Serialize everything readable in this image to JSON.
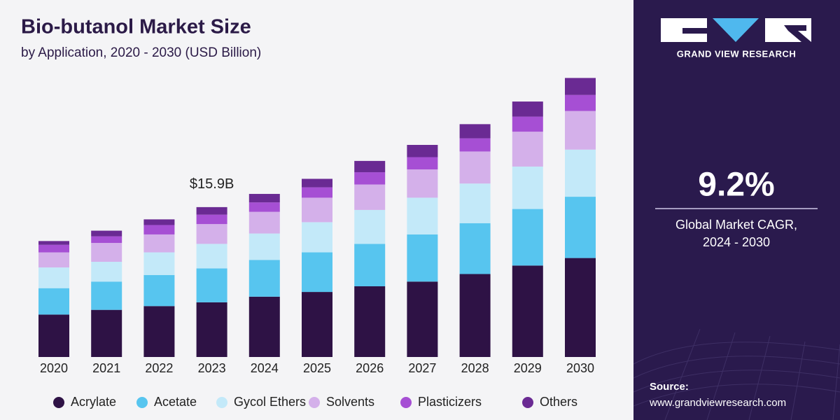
{
  "chart_data": {
    "type": "stacked_bar",
    "title": "Bio-butanol Market Size",
    "subtitle": "by Application, 2020 - 2030 (USD Billion)",
    "categories": [
      "2020",
      "2021",
      "2022",
      "2023",
      "2024",
      "2025",
      "2026",
      "2027",
      "2028",
      "2029",
      "2030"
    ],
    "series": [
      {
        "name": "Acrylate",
        "color": "#2e1245",
        "values": [
          4.5,
          5.0,
          5.4,
          5.8,
          6.4,
          6.9,
          7.5,
          8.0,
          8.8,
          9.7,
          10.5
        ]
      },
      {
        "name": "Acetate",
        "color": "#57c5ef",
        "values": [
          2.8,
          3.0,
          3.3,
          3.6,
          3.9,
          4.2,
          4.5,
          5.0,
          5.4,
          6.0,
          6.5
        ]
      },
      {
        "name": "Gycol Ethers",
        "color": "#c3e9f9",
        "values": [
          2.2,
          2.1,
          2.4,
          2.6,
          2.8,
          3.2,
          3.6,
          3.9,
          4.2,
          4.5,
          5.0
        ]
      },
      {
        "name": "Solvents",
        "color": "#d4b0ea",
        "values": [
          1.6,
          2.0,
          1.9,
          2.1,
          2.3,
          2.6,
          2.7,
          3.0,
          3.4,
          3.7,
          4.1
        ]
      },
      {
        "name": "Plasticizers",
        "color": "#a64fd4",
        "values": [
          0.8,
          0.7,
          1.0,
          1.0,
          1.0,
          1.1,
          1.3,
          1.3,
          1.4,
          1.6,
          1.7
        ]
      },
      {
        "name": "Others",
        "color": "#6a2a93",
        "values": [
          0.4,
          0.6,
          0.6,
          0.8,
          0.9,
          0.9,
          1.2,
          1.3,
          1.5,
          1.6,
          1.8
        ]
      }
    ],
    "annotations": [
      {
        "label": "$15.9B",
        "value": 15.9,
        "x": "2023"
      }
    ],
    "ylim": [
      0,
      30
    ],
    "legend": "bottom"
  },
  "sidebar": {
    "brand": "GRAND VIEW RESEARCH",
    "stat": "9.2%",
    "stat_caption": [
      "Global Market CAGR,",
      "2024 - 2030"
    ],
    "source_label": "Source:",
    "source_url": "www.grandviewresearch.com"
  }
}
